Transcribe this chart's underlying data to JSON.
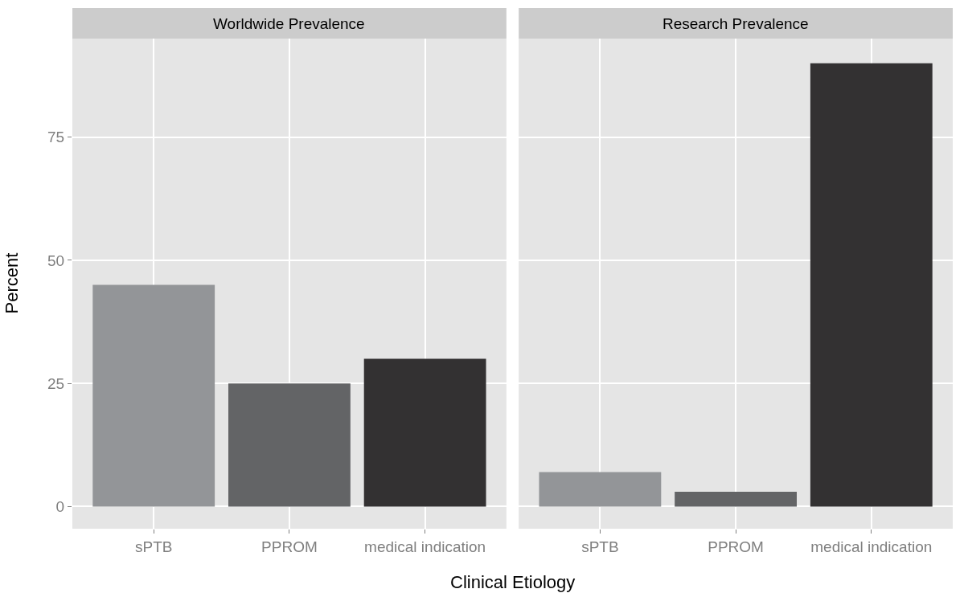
{
  "chart_data": [
    {
      "type": "bar",
      "title": "Worldwide Prevalence",
      "xlabel": "Clinical Etiology",
      "ylabel": "Percent",
      "categories": [
        "sPTB",
        "PPROM",
        "medical indication"
      ],
      "values": [
        45,
        25,
        30
      ],
      "colors": [
        "#939598",
        "#636466",
        "#333132"
      ],
      "ylim": [
        -4.5,
        95
      ],
      "yticks": [
        0,
        25,
        50,
        75
      ],
      "grid": true
    },
    {
      "type": "bar",
      "title": "Research Prevalence",
      "categories": [
        "sPTB",
        "PPROM",
        "medical indication"
      ],
      "values": [
        7,
        3,
        90
      ],
      "colors": [
        "#939598",
        "#636466",
        "#333132"
      ],
      "ylim": [
        -4.5,
        95
      ],
      "yticks": [
        0,
        25,
        50,
        75
      ],
      "grid": true,
      "tick_labels": "x"
    }
  ]
}
